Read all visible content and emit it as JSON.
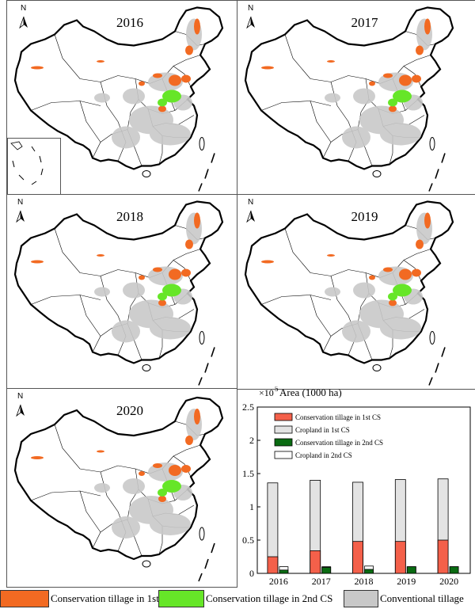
{
  "maps": [
    {
      "year": "2016",
      "inset": true
    },
    {
      "year": "2017",
      "inset": false
    },
    {
      "year": "2018",
      "inset": false
    },
    {
      "year": "2019",
      "inset": false
    },
    {
      "year": "2020",
      "inset": false
    }
  ],
  "north_label": "N",
  "legend": [
    {
      "label": "Conservation tillage in 1st CS",
      "color": "#f26a22"
    },
    {
      "label": "Conservation tillage in 2nd CS",
      "color": "#66e628"
    },
    {
      "label": "Conventional tillage",
      "color": "#c8c8c8"
    }
  ],
  "chart_data": {
    "type": "bar",
    "title": "Area (1000 ha)",
    "exponent_label": "×10",
    "exponent": "5",
    "categories": [
      "2016",
      "2017",
      "2018",
      "2019",
      "2020"
    ],
    "ylim": [
      0,
      2.5
    ],
    "yticks": [
      "0",
      "0.5",
      "1",
      "1.5",
      "2",
      "2.5"
    ],
    "series": [
      {
        "name": "Conservation tillage in 1st CS",
        "color": "#f4604a",
        "values": [
          0.25,
          0.34,
          0.48,
          0.48,
          0.5
        ]
      },
      {
        "name": "Cropland in 1st CS",
        "color": "#e3e3e3",
        "values": [
          1.36,
          1.4,
          1.37,
          1.41,
          1.42
        ]
      },
      {
        "name": "Conservation tillage in 2nd CS",
        "color": "#0a6b12",
        "values": [
          0.05,
          0.09,
          0.06,
          0.1,
          0.1
        ]
      },
      {
        "name": "Cropland in 2nd CS",
        "color": "#ffffff",
        "values": [
          0.1,
          0.1,
          0.11,
          0.1,
          0.1
        ]
      }
    ],
    "legend_position": "top"
  }
}
